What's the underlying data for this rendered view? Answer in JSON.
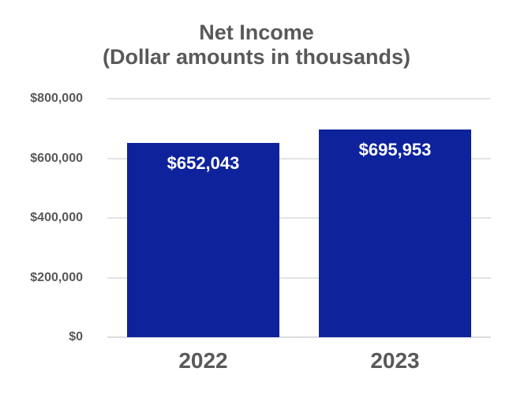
{
  "chart_data": {
    "type": "bar",
    "title": "Net Income",
    "subtitle": "(Dollar amounts in thousands)",
    "categories": [
      "2022",
      "2023"
    ],
    "values": [
      652043,
      695953
    ],
    "value_labels": [
      "$652,043",
      "$695,953"
    ],
    "yticks": [
      {
        "value": 0,
        "label": "$0"
      },
      {
        "value": 200000,
        "label": "$200,000"
      },
      {
        "value": 400000,
        "label": "$400,000"
      },
      {
        "value": 600000,
        "label": "$600,000"
      },
      {
        "value": 800000,
        "label": "$800,000"
      }
    ],
    "ylim": [
      0,
      800000
    ],
    "grid": true,
    "legend": false,
    "xlabel": "",
    "ylabel": "",
    "colors": {
      "bar": "#0E239B",
      "grid_line": "#E4E4E4",
      "axis_line": "#DCDCDC",
      "text": "#595959",
      "value_label_text": "#FFFFFF",
      "background": "#FFFFFF"
    }
  }
}
